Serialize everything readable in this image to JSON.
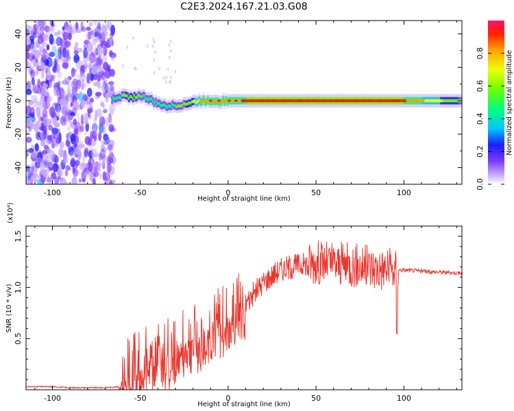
{
  "title": "C2E3.2024.167.21.03.G08",
  "colors": {
    "snr_line": "#e8372e",
    "spectrogram_scatter": "#7a2be2",
    "spectrogram_band": "#00d040",
    "spectrogram_peak": "#e02020",
    "colorbar": [
      "#c7a8ff",
      "#7d3cff",
      "#1c1cff",
      "#00c8ff",
      "#00ff80",
      "#6cff00",
      "#f0ff00",
      "#ffa000",
      "#ff2000",
      "#ff1070"
    ]
  },
  "chart_data": [
    {
      "type": "heatmap",
      "xlabel": "Height of straight line (km)",
      "ylabel": "Frequency (Hz)",
      "xlim": [
        -115,
        133
      ],
      "ylim": [
        -50,
        48
      ],
      "xticks": [
        -100,
        -50,
        0,
        50,
        100
      ],
      "yticks": [
        -40,
        -20,
        0,
        20,
        40
      ],
      "colorbar": {
        "label": "Normalized spectral amplitude",
        "range": [
          0,
          1
        ],
        "ticks": [
          "0.0",
          "0.2",
          "0.4",
          "0.6",
          "0.8"
        ]
      },
      "noise_region_km": [
        -115,
        -65
      ],
      "signal_ridge": {
        "x": [
          -66,
          -60,
          -55,
          -50,
          -45,
          -40,
          -35,
          -30,
          -25,
          -20,
          -15,
          -10,
          -5,
          0,
          5,
          10,
          20,
          40,
          60,
          80,
          100,
          133
        ],
        "freq": [
          1,
          3,
          2,
          3,
          1,
          -2,
          -3,
          -3,
          -2,
          -1,
          0,
          0,
          0,
          0,
          0,
          0,
          0,
          0,
          0,
          0,
          0,
          0
        ],
        "amplitude": [
          0.45,
          0.5,
          0.55,
          0.5,
          0.45,
          0.45,
          0.45,
          0.5,
          0.5,
          0.6,
          0.75,
          0.8,
          0.8,
          0.8,
          0.8,
          0.85,
          0.85,
          0.9,
          0.9,
          0.9,
          0.85,
          0.5
        ]
      }
    },
    {
      "type": "line",
      "xlabel": "Height of straight line (km)",
      "ylabel": "SNR (10 * v/v)",
      "ymultiplier": "(x10⁴)",
      "xlim": [
        -115,
        133
      ],
      "ylim": [
        0,
        1.6
      ],
      "xticks": [
        -100,
        -50,
        0,
        50,
        100
      ],
      "yticks": [
        0.5,
        1.0,
        1.5
      ],
      "ytick_labels": [
        "0.5",
        "1.0",
        "1.5"
      ],
      "series": [
        {
          "x": [
            -115,
            -100,
            -90,
            -80,
            -70,
            -62,
            -60,
            -55,
            -50,
            -45,
            -40,
            -35,
            -30,
            -25,
            -20,
            -15,
            -10,
            -5,
            0,
            5,
            10,
            15,
            20,
            25,
            30,
            35,
            40,
            50,
            60,
            70,
            80,
            90,
            95,
            100,
            110,
            120,
            133
          ],
          "values": [
            0.03,
            0.03,
            0.02,
            0.02,
            0.02,
            0.03,
            0.15,
            0.25,
            0.28,
            0.32,
            0.38,
            0.35,
            0.42,
            0.48,
            0.52,
            0.55,
            0.62,
            0.65,
            0.72,
            0.78,
            0.85,
            0.95,
            1.05,
            1.12,
            1.18,
            1.2,
            1.22,
            1.25,
            1.23,
            1.22,
            1.2,
            1.18,
            1.17,
            1.17,
            1.16,
            1.15,
            1.14
          ]
        }
      ]
    }
  ]
}
